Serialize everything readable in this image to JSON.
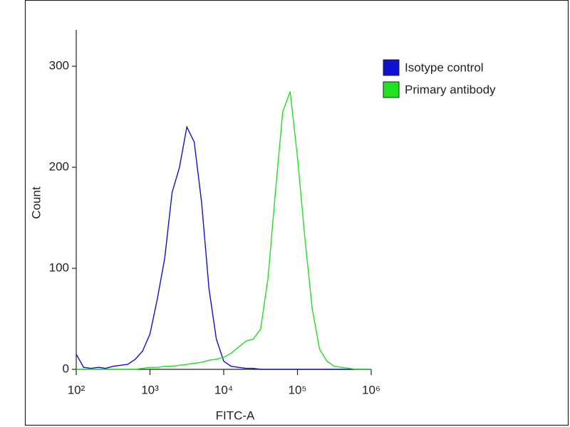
{
  "chart_data": {
    "type": "line",
    "x_label": "FITC-A",
    "y_label": "Count",
    "x_log": true,
    "xlim": [
      100,
      1000000
    ],
    "xticks": [
      {
        "value": 100,
        "label": "10²"
      },
      {
        "value": 1000,
        "label": "10³"
      },
      {
        "value": 10000,
        "label": "10⁴"
      },
      {
        "value": 100000,
        "label": "10⁵"
      },
      {
        "value": 1000000,
        "label": "10⁶"
      }
    ],
    "ylim": [
      0,
      336
    ],
    "yticks": [
      0,
      100,
      200,
      300
    ],
    "legend": "top-right",
    "x": [
      100,
      126,
      158,
      200,
      251,
      316,
      398,
      501,
      631,
      794,
      1000,
      1259,
      1585,
      1995,
      2512,
      3162,
      3981,
      5012,
      6310,
      7943,
      10000,
      12589,
      15849,
      19953,
      25119,
      31623,
      39811,
      50119,
      63096,
      79433,
      100000,
      125893,
      158489,
      199526,
      251189,
      316228,
      398107,
      501187,
      630957,
      794328,
      1000000
    ],
    "series": [
      {
        "name": "Isotype control",
        "color": "#1010d0",
        "values": [
          15,
          2,
          1,
          2,
          1,
          3,
          4,
          5,
          10,
          18,
          35,
          70,
          110,
          175,
          200,
          240,
          225,
          165,
          80,
          30,
          8,
          3,
          2,
          1,
          1,
          0,
          0,
          0,
          0,
          0,
          0,
          0,
          0,
          0,
          0,
          0,
          0,
          0,
          0,
          0,
          0
        ]
      },
      {
        "name": "Primary antibody",
        "color": "#22e022",
        "values": [
          0,
          0,
          0,
          0,
          0,
          0,
          0,
          0,
          0,
          1,
          2,
          2,
          3,
          3,
          4,
          5,
          6,
          7,
          9,
          10,
          12,
          16,
          22,
          28,
          30,
          40,
          90,
          175,
          255,
          275,
          210,
          130,
          60,
          20,
          8,
          3,
          2,
          1,
          0,
          0,
          0
        ]
      }
    ]
  }
}
